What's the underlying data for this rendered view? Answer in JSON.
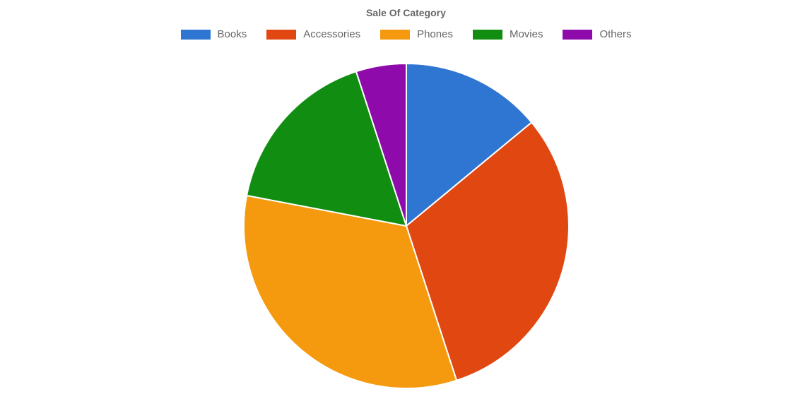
{
  "chart": {
    "type": "pie",
    "title": "Sale Of Category",
    "title_fontsize": 14,
    "title_color": "#666666",
    "background_color": "#ffffff",
    "border_color": "#ffffff",
    "border_width": 2,
    "radius": 230,
    "legend": {
      "position": "top",
      "swatch_width": 42,
      "swatch_height": 14,
      "label_fontsize": 15,
      "label_color": "#666666"
    },
    "slices": [
      {
        "label": "Books",
        "value": 14,
        "color": "#2f76d2"
      },
      {
        "label": "Accessories",
        "value": 31,
        "color": "#e04711"
      },
      {
        "label": "Phones",
        "value": 33,
        "color": "#f59a0e"
      },
      {
        "label": "Movies",
        "value": 17,
        "color": "#118e11"
      },
      {
        "label": "Others",
        "value": 5,
        "color": "#8e0aaa"
      }
    ]
  }
}
